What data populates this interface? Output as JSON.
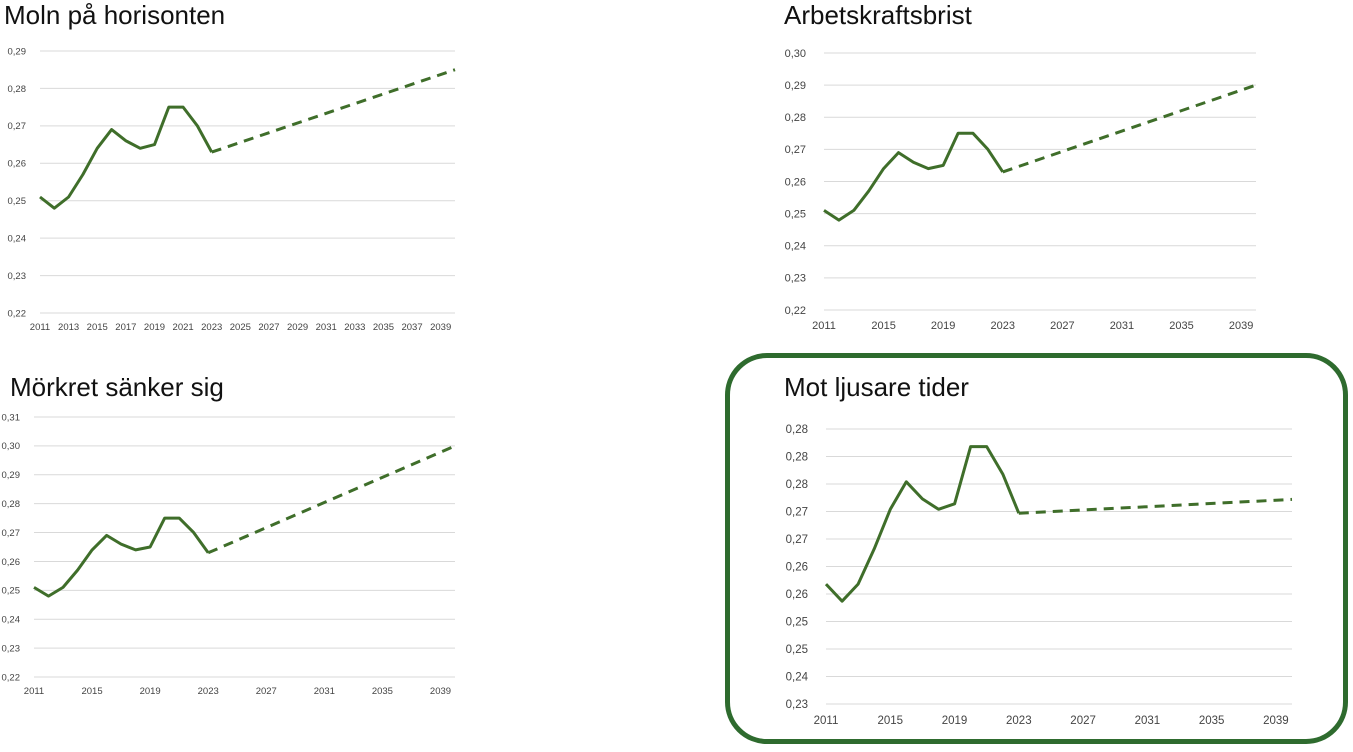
{
  "style": {
    "line_color": "#3f6e2a",
    "grid_color": "#d9d9d9",
    "frame_color": "#2e6b2e"
  },
  "chart_data": [
    {
      "type": "line",
      "title": "Moln på horisonten",
      "yticks": [
        "0,22",
        "0,23",
        "0,24",
        "0,25",
        "0,26",
        "0,27",
        "0,28",
        "0,29"
      ],
      "ylim": [
        0.22,
        0.29
      ],
      "xlim": [
        2011,
        2040
      ],
      "xticks": [
        "2011",
        "2013",
        "2015",
        "2017",
        "2019",
        "2021",
        "2023",
        "2025",
        "2027",
        "2029",
        "2031",
        "2033",
        "2035",
        "2037",
        "2039"
      ],
      "series": [
        {
          "style": "solid",
          "x": [
            2011,
            2012,
            2013,
            2014,
            2015,
            2016,
            2017,
            2018,
            2019,
            2020,
            2021,
            2022,
            2023
          ],
          "y": [
            0.251,
            0.248,
            0.251,
            0.257,
            0.264,
            0.269,
            0.266,
            0.264,
            0.265,
            0.275,
            0.275,
            0.27,
            0.263
          ]
        },
        {
          "style": "dashed",
          "x": [
            2023,
            2040
          ],
          "y": [
            0.263,
            0.285
          ]
        }
      ]
    },
    {
      "type": "line",
      "title": "Arbetskraftsbrist",
      "yticks": [
        "0,22",
        "0,23",
        "0,24",
        "0,25",
        "0,26",
        "0,27",
        "0,28",
        "0,29",
        "0,30"
      ],
      "ylim": [
        0.22,
        0.3
      ],
      "xlim": [
        2011,
        2040
      ],
      "xticks": [
        "2011",
        "2015",
        "2019",
        "2023",
        "2027",
        "2031",
        "2035",
        "2039"
      ],
      "series": [
        {
          "style": "solid",
          "x": [
            2011,
            2012,
            2013,
            2014,
            2015,
            2016,
            2017,
            2018,
            2019,
            2020,
            2021,
            2022,
            2023
          ],
          "y": [
            0.251,
            0.248,
            0.251,
            0.257,
            0.264,
            0.269,
            0.266,
            0.264,
            0.265,
            0.275,
            0.275,
            0.27,
            0.263
          ]
        },
        {
          "style": "dashed",
          "x": [
            2023,
            2040
          ],
          "y": [
            0.263,
            0.29
          ]
        }
      ]
    },
    {
      "type": "line",
      "title": "Mörkret sänker sig",
      "yticks": [
        "0,22",
        "0,23",
        "0,24",
        "0,25",
        "0,26",
        "0,27",
        "0,28",
        "0,29",
        "0,30",
        "0,31"
      ],
      "ylim": [
        0.22,
        0.31
      ],
      "xlim": [
        2011,
        2040
      ],
      "xticks": [
        "2011",
        "2015",
        "2019",
        "2023",
        "2027",
        "2031",
        "2035",
        "2039"
      ],
      "series": [
        {
          "style": "solid",
          "x": [
            2011,
            2012,
            2013,
            2014,
            2015,
            2016,
            2017,
            2018,
            2019,
            2020,
            2021,
            2022,
            2023
          ],
          "y": [
            0.251,
            0.248,
            0.251,
            0.257,
            0.264,
            0.269,
            0.266,
            0.264,
            0.265,
            0.275,
            0.275,
            0.27,
            0.263
          ]
        },
        {
          "style": "dashed",
          "x": [
            2023,
            2040
          ],
          "y": [
            0.263,
            0.3
          ]
        }
      ]
    },
    {
      "type": "line",
      "title": "Mot ljusare tider",
      "yticks": [
        "0,23",
        "0,24",
        "0,25",
        "0,25",
        "0,26",
        "0,26",
        "0,27",
        "0,27",
        "0,28",
        "0,28",
        "0,28"
      ],
      "ylim": [
        0.23,
        0.28
      ],
      "xlim": [
        2011,
        2040
      ],
      "xticks": [
        "2011",
        "2015",
        "2019",
        "2023",
        "2027",
        "2031",
        "2035",
        "2039"
      ],
      "series": [
        {
          "style": "solid",
          "x": [
            2011,
            2012,
            2013,
            2014,
            2015,
            2016,
            2017,
            2018,
            2019,
            2020,
            2021,
            2022,
            2023
          ],
          "y": [
            0.2518,
            0.2487,
            0.2518,
            0.2582,
            0.2654,
            0.2704,
            0.2673,
            0.2654,
            0.2664,
            0.2768,
            0.2768,
            0.2718,
            0.2647
          ]
        },
        {
          "style": "dashed",
          "x": [
            2023,
            2040
          ],
          "y": [
            0.2647,
            0.2672
          ]
        }
      ],
      "highlighted": true
    }
  ]
}
